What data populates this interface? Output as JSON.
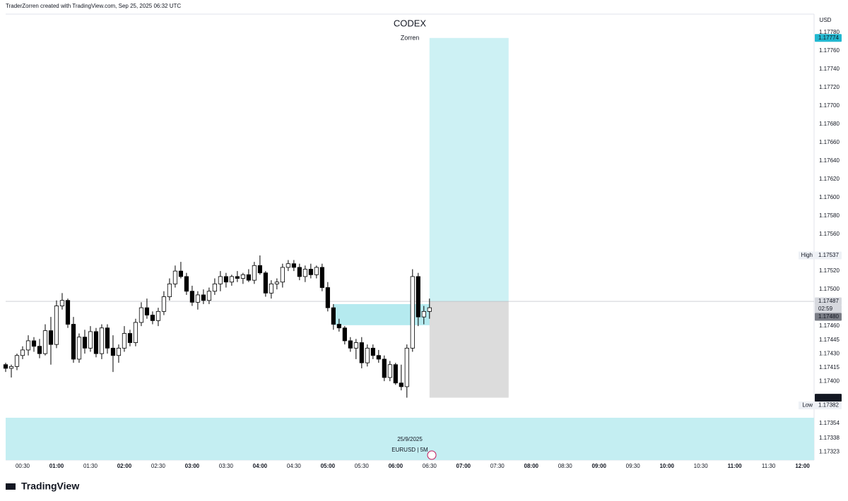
{
  "header": {
    "attribution": "TraderZorren created with TradingView.com, Sep 25, 2025 06:32 UTC",
    "logo": "TradingView"
  },
  "chart_data": {
    "type": "candlestick",
    "title": "CODEX",
    "subtitle": "Zorren",
    "currency": "USD",
    "date": "25/9/2025",
    "symbol": "EURUSD | 5M",
    "up_color": "#ffffff",
    "down_color": "#000000",
    "wick_color": "#000000",
    "grid": false,
    "x": [
      "00:15",
      "00:20",
      "00:25",
      "00:30",
      "00:35",
      "00:40",
      "00:45",
      "00:50",
      "00:55",
      "01:00",
      "01:05",
      "01:10",
      "01:15",
      "01:20",
      "01:25",
      "01:30",
      "01:35",
      "01:40",
      "01:45",
      "01:50",
      "01:55",
      "02:00",
      "02:05",
      "02:10",
      "02:15",
      "02:20",
      "02:25",
      "02:30",
      "02:35",
      "02:40",
      "02:45",
      "02:50",
      "02:55",
      "03:00",
      "03:05",
      "03:10",
      "03:15",
      "03:20",
      "03:25",
      "03:30",
      "03:35",
      "03:40",
      "03:45",
      "03:50",
      "03:55",
      "04:00",
      "04:05",
      "04:10",
      "04:15",
      "04:20",
      "04:25",
      "04:30",
      "04:35",
      "04:40",
      "04:45",
      "04:50",
      "04:55",
      "05:00",
      "05:05",
      "05:10",
      "05:15",
      "05:20",
      "05:25",
      "05:30",
      "05:35",
      "05:40",
      "05:45",
      "05:50",
      "05:55",
      "06:00",
      "06:05",
      "06:10",
      "06:15",
      "06:20",
      "06:25",
      "06:30"
    ],
    "open": [
      1.17418,
      1.17414,
      1.17416,
      1.17428,
      1.17434,
      1.17444,
      1.17438,
      1.1743,
      1.17455,
      1.1744,
      1.17482,
      1.17488,
      1.17462,
      1.17424,
      1.17448,
      1.17436,
      1.17454,
      1.1743,
      1.17458,
      1.17436,
      1.17428,
      1.17436,
      1.17452,
      1.17442,
      1.17464,
      1.1748,
      1.17472,
      1.17466,
      1.17476,
      1.17492,
      1.17506,
      1.1752,
      1.17514,
      1.17498,
      1.17486,
      1.17494,
      1.17488,
      1.17498,
      1.17506,
      1.17514,
      1.17508,
      1.17514,
      1.17512,
      1.17516,
      1.1751,
      1.17526,
      1.17518,
      1.17496,
      1.17506,
      1.17508,
      1.17524,
      1.17528,
      1.17524,
      1.17514,
      1.17522,
      1.17516,
      1.17524,
      1.17502,
      1.1748,
      1.17462,
      1.17458,
      1.17444,
      1.17436,
      1.17442,
      1.1742,
      1.17436,
      1.17428,
      1.17424,
      1.17404,
      1.17418,
      1.17398,
      1.17394,
      1.17436,
      1.17514,
      1.1747,
      1.17476
    ],
    "high": [
      1.1742,
      1.17418,
      1.1743,
      1.17438,
      1.1745,
      1.17448,
      1.17446,
      1.17462,
      1.1747,
      1.17488,
      1.17496,
      1.1749,
      1.1747,
      1.17452,
      1.17456,
      1.1746,
      1.17458,
      1.17462,
      1.17462,
      1.1745,
      1.1744,
      1.1746,
      1.17456,
      1.17468,
      1.17486,
      1.1749,
      1.17476,
      1.1748,
      1.17498,
      1.17512,
      1.17526,
      1.1753,
      1.17518,
      1.17504,
      1.17498,
      1.175,
      1.17502,
      1.17512,
      1.1752,
      1.17518,
      1.17516,
      1.1752,
      1.17518,
      1.17522,
      1.1753,
      1.17537,
      1.1752,
      1.1751,
      1.17512,
      1.17528,
      1.17532,
      1.17532,
      1.17528,
      1.17526,
      1.17528,
      1.17526,
      1.17528,
      1.17508,
      1.17484,
      1.17468,
      1.1746,
      1.17448,
      1.17446,
      1.17448,
      1.1744,
      1.1744,
      1.17434,
      1.17428,
      1.17422,
      1.1742,
      1.17418,
      1.1744,
      1.17522,
      1.17518,
      1.17482,
      1.1749
    ],
    "low": [
      1.1741,
      1.17404,
      1.17412,
      1.17424,
      1.17428,
      1.17432,
      1.17425,
      1.17428,
      1.17418,
      1.17436,
      1.17478,
      1.17458,
      1.1742,
      1.1742,
      1.1743,
      1.17432,
      1.17426,
      1.17424,
      1.1743,
      1.1741,
      1.1742,
      1.17432,
      1.17438,
      1.17438,
      1.1746,
      1.17468,
      1.17462,
      1.1746,
      1.17472,
      1.17488,
      1.17502,
      1.17512,
      1.17494,
      1.17482,
      1.17478,
      1.17484,
      1.17484,
      1.17494,
      1.17498,
      1.17502,
      1.17504,
      1.17508,
      1.17506,
      1.17508,
      1.17506,
      1.17516,
      1.17492,
      1.1749,
      1.175,
      1.17502,
      1.1752,
      1.1752,
      1.1751,
      1.17508,
      1.17512,
      1.17512,
      1.17498,
      1.17476,
      1.17456,
      1.17454,
      1.1744,
      1.17432,
      1.17424,
      1.17414,
      1.17416,
      1.17424,
      1.1742,
      1.174,
      1.174,
      1.17396,
      1.1739,
      1.17382,
      1.17432,
      1.1746,
      1.17462,
      1.17468
    ],
    "close": [
      1.17414,
      1.17416,
      1.17428,
      1.17434,
      1.17444,
      1.17438,
      1.1743,
      1.17455,
      1.1744,
      1.17482,
      1.17488,
      1.17462,
      1.17424,
      1.17448,
      1.17436,
      1.17454,
      1.1743,
      1.17458,
      1.17436,
      1.17428,
      1.17436,
      1.17452,
      1.17442,
      1.17464,
      1.1748,
      1.17472,
      1.17466,
      1.17476,
      1.17492,
      1.17506,
      1.1752,
      1.17514,
      1.17498,
      1.17486,
      1.17494,
      1.17488,
      1.17498,
      1.17506,
      1.17514,
      1.17508,
      1.17514,
      1.17512,
      1.17516,
      1.1751,
      1.17526,
      1.17518,
      1.17496,
      1.17506,
      1.17508,
      1.17524,
      1.17528,
      1.17524,
      1.17514,
      1.17522,
      1.17516,
      1.17524,
      1.17502,
      1.1748,
      1.17462,
      1.17458,
      1.17444,
      1.17436,
      1.17442,
      1.1742,
      1.17436,
      1.17428,
      1.17424,
      1.17404,
      1.17418,
      1.17398,
      1.17394,
      1.17436,
      1.17514,
      1.1747,
      1.17476,
      1.1748
    ],
    "xlim": [
      "00:15",
      "12:09"
    ],
    "xticks": [
      "00:30",
      "01:00",
      "01:30",
      "02:00",
      "02:30",
      "03:00",
      "03:30",
      "04:00",
      "04:30",
      "05:00",
      "05:30",
      "06:00",
      "06:30",
      "07:00",
      "07:30",
      "08:00",
      "08:30",
      "09:00",
      "09:30",
      "10:00",
      "10:30",
      "11:00",
      "11:30",
      "12:00"
    ],
    "ylim": [
      1.17314,
      1.178
    ],
    "yticks": [
      {
        "value": 1.1778,
        "label": "1.17780"
      },
      {
        "value": 1.1776,
        "label": "1.17760"
      },
      {
        "value": 1.1774,
        "label": "1.17740"
      },
      {
        "value": 1.1772,
        "label": "1.17720"
      },
      {
        "value": 1.177,
        "label": "1.17700"
      },
      {
        "value": 1.1768,
        "label": "1.17680"
      },
      {
        "value": 1.1766,
        "label": "1.17660"
      },
      {
        "value": 1.1764,
        "label": "1.17640"
      },
      {
        "value": 1.1762,
        "label": "1.17620"
      },
      {
        "value": 1.176,
        "label": "1.17600"
      },
      {
        "value": 1.1758,
        "label": "1.17580"
      },
      {
        "value": 1.1756,
        "label": "1.17560"
      },
      {
        "value": 1.1752,
        "label": "1.17520"
      },
      {
        "value": 1.175,
        "label": "1.17500"
      },
      {
        "value": 1.1746,
        "label": "1.17460"
      },
      {
        "value": 1.17445,
        "label": "1.17445"
      },
      {
        "value": 1.1743,
        "label": "1.17430"
      },
      {
        "value": 1.17415,
        "label": "1.17415"
      },
      {
        "value": 1.174,
        "label": "1.17400"
      },
      {
        "value": 1.17354,
        "label": "1.17354"
      },
      {
        "value": 1.17338,
        "label": "1.17338"
      },
      {
        "value": 1.17323,
        "label": "1.17323"
      }
    ],
    "price_tags": [
      {
        "value": 1.17774,
        "label": "1.17774",
        "bg": "#22b8d0",
        "fg": "#131722"
      },
      {
        "name": "High",
        "value": 1.17537,
        "label": "1.17537",
        "bg": "#eef1f6",
        "fg": "#131722"
      },
      {
        "value": 1.17487,
        "label": "1.17487",
        "countdown": "02:59",
        "bg": "#d6d8de",
        "fg": "#131722"
      },
      {
        "value": 1.1748,
        "label": "1.17480",
        "bg": "#7a7d86",
        "fg": "#ffffff"
      },
      {
        "value": 1.17382,
        "label": "1.17382",
        "bg": "#131722",
        "fg": "#ffffff"
      },
      {
        "name": "Low",
        "value": 1.17382,
        "label": "1.17382",
        "bg": "#eef1f6",
        "fg": "#131722"
      }
    ],
    "position": {
      "start": "06:30",
      "end": "07:40",
      "entry": 1.17487,
      "target": 1.17774,
      "stop": 1.17382,
      "target_color": "#cdf1f4",
      "stop_color": "#dcdcdc"
    },
    "zone": {
      "start": "05:05",
      "end": "06:45",
      "top": 1.17484,
      "bottom": 1.17461,
      "color": "#b5eaef"
    }
  }
}
